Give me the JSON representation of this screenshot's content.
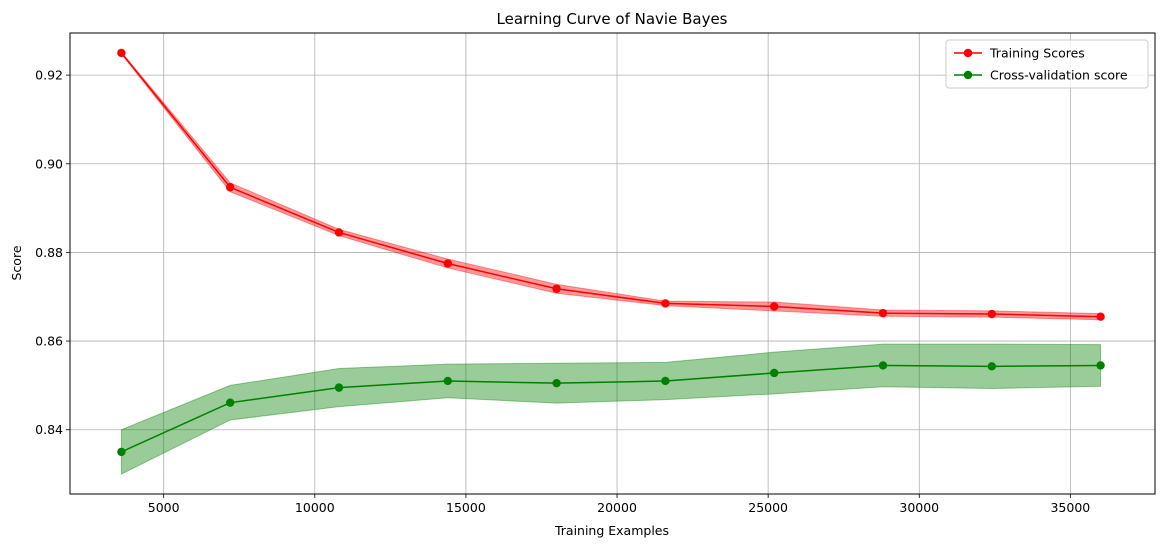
{
  "chart_data": {
    "type": "line",
    "title": "Learning Curve of Navie Bayes",
    "xlabel": "Training Examples",
    "ylabel": "Score",
    "xlim": [
      1900,
      37800
    ],
    "ylim": [
      0.8255,
      0.9295
    ],
    "xticks": [
      5000,
      10000,
      15000,
      20000,
      25000,
      30000,
      35000
    ],
    "yticks": [
      0.84,
      0.86,
      0.88,
      0.9,
      0.92
    ],
    "xtick_labels": [
      "5000",
      "10000",
      "15000",
      "20000",
      "25000",
      "30000",
      "35000"
    ],
    "ytick_labels": [
      "0.84",
      "0.86",
      "0.88",
      "0.90",
      "0.92"
    ],
    "grid": true,
    "legend_position": "top-right",
    "x": [
      3600,
      7200,
      10800,
      14400,
      18000,
      21600,
      25200,
      28800,
      32400,
      36000
    ],
    "series": [
      {
        "name": "Training Scores",
        "color": "#ff0000",
        "band_color": "#ff0000",
        "values": [
          0.925,
          0.8947,
          0.8845,
          0.8775,
          0.8718,
          0.8685,
          0.8678,
          0.8663,
          0.8661,
          0.8655
        ],
        "band_upper": [
          0.9252,
          0.8957,
          0.8852,
          0.8785,
          0.8728,
          0.869,
          0.8688,
          0.867,
          0.8668,
          0.8662
        ],
        "band_lower": [
          0.9248,
          0.8937,
          0.8838,
          0.8765,
          0.8708,
          0.868,
          0.8668,
          0.8656,
          0.8654,
          0.8648
        ]
      },
      {
        "name": "Cross-validation score",
        "color": "#008000",
        "band_color": "#008000",
        "values": [
          0.835,
          0.8461,
          0.8495,
          0.851,
          0.8505,
          0.851,
          0.8528,
          0.8545,
          0.8543,
          0.8545
        ],
        "band_upper": [
          0.84,
          0.85,
          0.8538,
          0.8548,
          0.855,
          0.8552,
          0.8575,
          0.8593,
          0.8593,
          0.8592
        ],
        "band_lower": [
          0.83,
          0.8422,
          0.8452,
          0.8472,
          0.846,
          0.8468,
          0.8481,
          0.8497,
          0.8493,
          0.8498
        ]
      }
    ]
  }
}
